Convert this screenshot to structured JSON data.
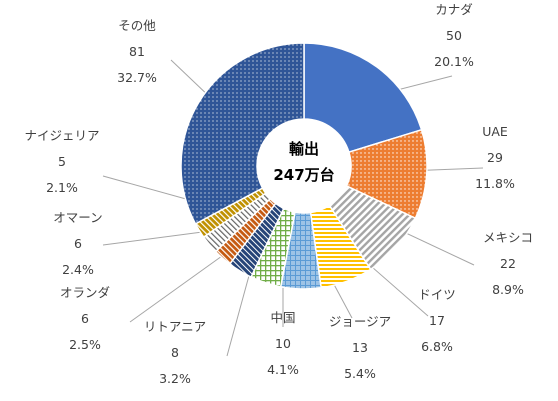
{
  "chart_data": {
    "type": "pie",
    "variant": "donut",
    "center_label": [
      "輸出",
      "247万台"
    ],
    "start_angle_deg": 0,
    "direction": "clockwise",
    "slices": [
      {
        "name": "カナダ",
        "value": 50,
        "percent": "20.1%",
        "color": "#4472C4",
        "pattern": "solid"
      },
      {
        "name": "UAE",
        "value": 29,
        "percent": "11.8%",
        "color": "#ED7D31",
        "pattern": "dots"
      },
      {
        "name": "メキシコ",
        "value": 22,
        "percent": "8.9%",
        "color": "#A5A5A5",
        "pattern": "diagonal"
      },
      {
        "name": "ドイツ",
        "value": 17,
        "percent": "6.8%",
        "color": "#FFC000",
        "pattern": "horizontal"
      },
      {
        "name": "ジョージア",
        "value": 13,
        "percent": "5.4%",
        "color": "#5B9BD5",
        "pattern": "grid"
      },
      {
        "name": "中国",
        "value": 10,
        "percent": "4.1%",
        "color": "#70AD47",
        "pattern": "grid"
      },
      {
        "name": "リトアニア",
        "value": 8,
        "percent": "3.2%",
        "color": "#264478",
        "pattern": "diagonal"
      },
      {
        "name": "オランダ",
        "value": 6,
        "percent": "2.5%",
        "color": "#9E480E",
        "pattern": "diagonal"
      },
      {
        "name": "オマーン",
        "value": 6,
        "percent": "2.4%",
        "color": "#636363",
        "pattern": "diagonal-light"
      },
      {
        "name": "ナイジェリア",
        "value": 5,
        "percent": "2.1%",
        "color": "#997300",
        "pattern": "diagonal"
      },
      {
        "name": "その他",
        "value": 81,
        "percent": "32.7%",
        "color": "#2F5597",
        "pattern": "dots"
      }
    ]
  }
}
